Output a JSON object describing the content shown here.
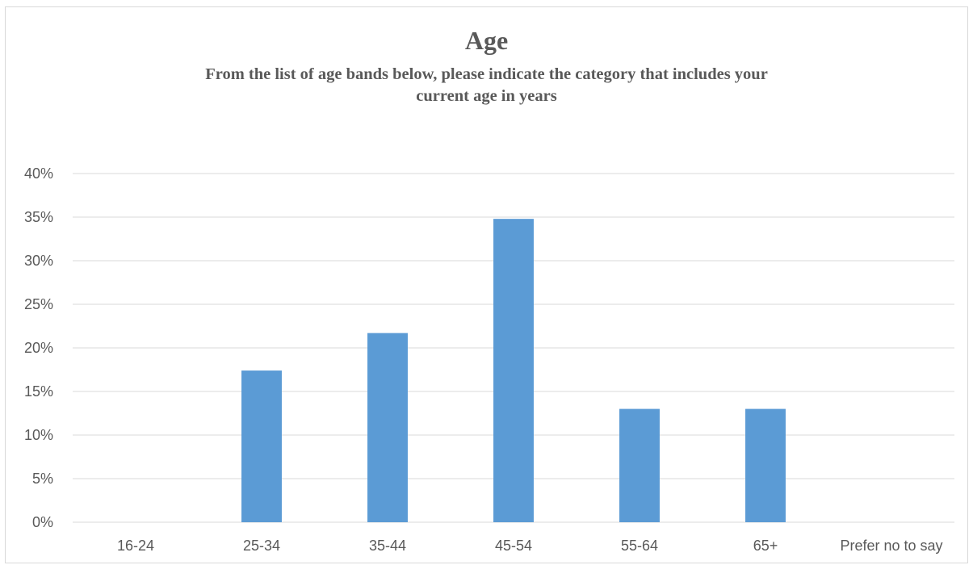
{
  "chart_data": {
    "type": "bar",
    "title": "Age",
    "subtitle_lines": [
      "From the list of age bands below, please indicate the category that includes your",
      "current age in years"
    ],
    "xlabel": "",
    "ylabel": "",
    "categories": [
      "16-24",
      "25-34",
      "35-44",
      "45-54",
      "55-64",
      "65+",
      "Prefer no to say"
    ],
    "values": [
      0,
      17.4,
      21.7,
      34.8,
      13.0,
      13.0,
      0
    ],
    "ylim": [
      0,
      40
    ],
    "yticks": [
      0,
      5,
      10,
      15,
      20,
      25,
      30,
      35,
      40
    ],
    "ytick_labels": [
      "0%",
      "5%",
      "10%",
      "15%",
      "20%",
      "25%",
      "30%",
      "35%",
      "40%"
    ],
    "grid": true,
    "legend": "none",
    "bar_color": "#5b9bd5",
    "grid_color": "#d9d9d9"
  }
}
